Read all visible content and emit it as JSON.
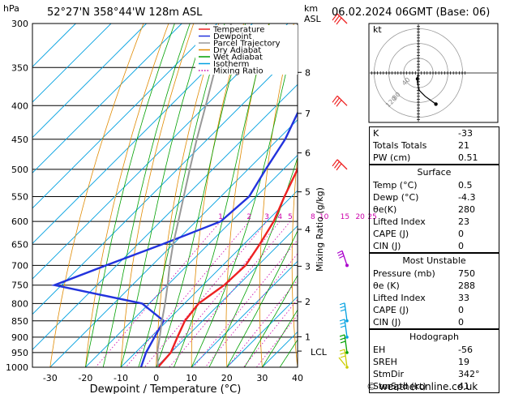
{
  "header": {
    "location": "52°27'N 358°44'W 128m ASL",
    "datetime": "06.02.2024 06GMT (Base: 06)",
    "hpa_label": "hPa",
    "km_label": "km",
    "asl_label": "ASL"
  },
  "chart_data": {
    "type": "line",
    "title": "",
    "xlabel": "Dewpoint / Temperature (°C)",
    "ylabel": "",
    "mixing_axis_label": "Mixing Ratio (g/kg)",
    "xlim": [
      -35,
      40
    ],
    "pressure_range": [
      300,
      1000
    ],
    "pressure_ticks": [
      300,
      350,
      400,
      450,
      500,
      550,
      600,
      650,
      700,
      750,
      800,
      850,
      900,
      950,
      1000
    ],
    "temperature_ticks": [
      -30,
      -20,
      -10,
      0,
      10,
      20,
      30,
      40
    ],
    "km_ticks": [
      {
        "label": "8",
        "p": 356
      },
      {
        "label": "7",
        "p": 411
      },
      {
        "label": "6",
        "p": 472
      },
      {
        "label": "5",
        "p": 541
      },
      {
        "label": "4",
        "p": 617
      },
      {
        "label": "3",
        "p": 702
      },
      {
        "label": "2",
        "p": 795
      },
      {
        "label": "1",
        "p": 899
      }
    ],
    "lcl": {
      "label": "LCL",
      "p": 945
    },
    "mixing_ratio_labels": [
      "1",
      "2",
      "3",
      "4",
      "5",
      "8",
      "10",
      "15",
      "20",
      "25"
    ],
    "mixing_ratio_values": [
      1,
      2,
      3,
      4,
      5,
      8,
      10,
      15,
      20,
      25
    ],
    "legend": [
      {
        "name": "Temperature",
        "color": "#ee2222"
      },
      {
        "name": "Dewpoint",
        "color": "#2233dd"
      },
      {
        "name": "Parcel Trajectory",
        "color": "#999999"
      },
      {
        "name": "Dry Adiabat",
        "color": "#e08a00"
      },
      {
        "name": "Wet Adiabat",
        "color": "#00a000"
      },
      {
        "name": "Isotherm",
        "color": "#00a0e0"
      },
      {
        "name": "Mixing Ratio",
        "color": "#cc00aa"
      }
    ],
    "legend_position": "top-right",
    "series": [
      {
        "name": "Temperature",
        "color": "#ee2222",
        "points": [
          [
            1000,
            0.5
          ],
          [
            950,
            0
          ],
          [
            900,
            -2.5
          ],
          [
            850,
            -5
          ],
          [
            800,
            -6
          ],
          [
            750,
            -4
          ],
          [
            700,
            -3.5
          ],
          [
            650,
            -5.5
          ],
          [
            600,
            -8
          ],
          [
            550,
            -12
          ],
          [
            500,
            -16
          ],
          [
            450,
            -22
          ],
          [
            400,
            -28
          ],
          [
            350,
            -35
          ],
          [
            300,
            -42
          ]
        ]
      },
      {
        "name": "Dewpoint",
        "color": "#2233dd",
        "points": [
          [
            1000,
            -4.3
          ],
          [
            950,
            -7
          ],
          [
            900,
            -9
          ],
          [
            850,
            -11
          ],
          [
            800,
            -22
          ],
          [
            750,
            -52
          ],
          [
            700,
            -43
          ],
          [
            650,
            -33
          ],
          [
            600,
            -23
          ],
          [
            550,
            -22
          ],
          [
            500,
            -25
          ],
          [
            450,
            -28
          ],
          [
            400,
            -33
          ],
          [
            350,
            -40
          ],
          [
            300,
            -46
          ]
        ]
      },
      {
        "name": "Parcel Trajectory",
        "color": "#999999",
        "points": [
          [
            1000,
            0.5
          ],
          [
            945,
            -4.2
          ],
          [
            900,
            -7.5
          ],
          [
            850,
            -11.5
          ],
          [
            800,
            -15.5
          ],
          [
            750,
            -20
          ],
          [
            700,
            -25
          ],
          [
            650,
            -30
          ],
          [
            600,
            -35
          ],
          [
            550,
            -40.5
          ],
          [
            500,
            -46.5
          ],
          [
            450,
            -53
          ],
          [
            400,
            -60
          ],
          [
            350,
            -68
          ],
          [
            300,
            -76
          ]
        ]
      }
    ]
  },
  "hodograph": {
    "label": "kt",
    "ring_labels": [
      "120",
      "80",
      "40"
    ],
    "points_kt": [
      [
        0,
        0
      ],
      [
        -1,
        -6
      ],
      [
        -1,
        -10
      ],
      [
        1,
        -18
      ],
      [
        7,
        -24
      ],
      [
        18,
        -32
      ]
    ]
  },
  "wind_barbs_pressures": [
    300,
    400,
    500,
    700,
    850,
    900,
    950,
    1000
  ],
  "wind_barbs_colors": [
    "#ee2222",
    "#ee2222",
    "#ee2222",
    "#aa00cc",
    "#00a0e0",
    "#00a0e0",
    "#00a000",
    "#cccc00"
  ],
  "indices": {
    "rows": [
      {
        "label": "K",
        "value": "-33"
      },
      {
        "label": "Totals Totals",
        "value": "21"
      },
      {
        "label": "PW (cm)",
        "value": "0.51"
      }
    ]
  },
  "surface": {
    "title": "Surface",
    "rows": [
      {
        "label": "Temp (°C)",
        "value": "0.5"
      },
      {
        "label": "Dewp (°C)",
        "value": "-4.3"
      },
      {
        "label": "θe(K)",
        "value": "280"
      },
      {
        "label": "Lifted Index",
        "value": "23"
      },
      {
        "label": "CAPE (J)",
        "value": "0"
      },
      {
        "label": "CIN (J)",
        "value": "0"
      }
    ]
  },
  "unstable": {
    "title": "Most Unstable",
    "rows": [
      {
        "label": "Pressure (mb)",
        "value": "750"
      },
      {
        "label": "θe (K)",
        "value": "288"
      },
      {
        "label": "Lifted Index",
        "value": "33"
      },
      {
        "label": "CAPE (J)",
        "value": "0"
      },
      {
        "label": "CIN (J)",
        "value": "0"
      }
    ]
  },
  "hodo_table": {
    "title": "Hodograph",
    "rows": [
      {
        "label": "EH",
        "value": "-56"
      },
      {
        "label": "SREH",
        "value": "19"
      },
      {
        "label": "StmDir",
        "value": "342°"
      },
      {
        "label": "StmSpd (kt)",
        "value": "41"
      }
    ]
  },
  "credit": "© weatheronline.co.uk"
}
